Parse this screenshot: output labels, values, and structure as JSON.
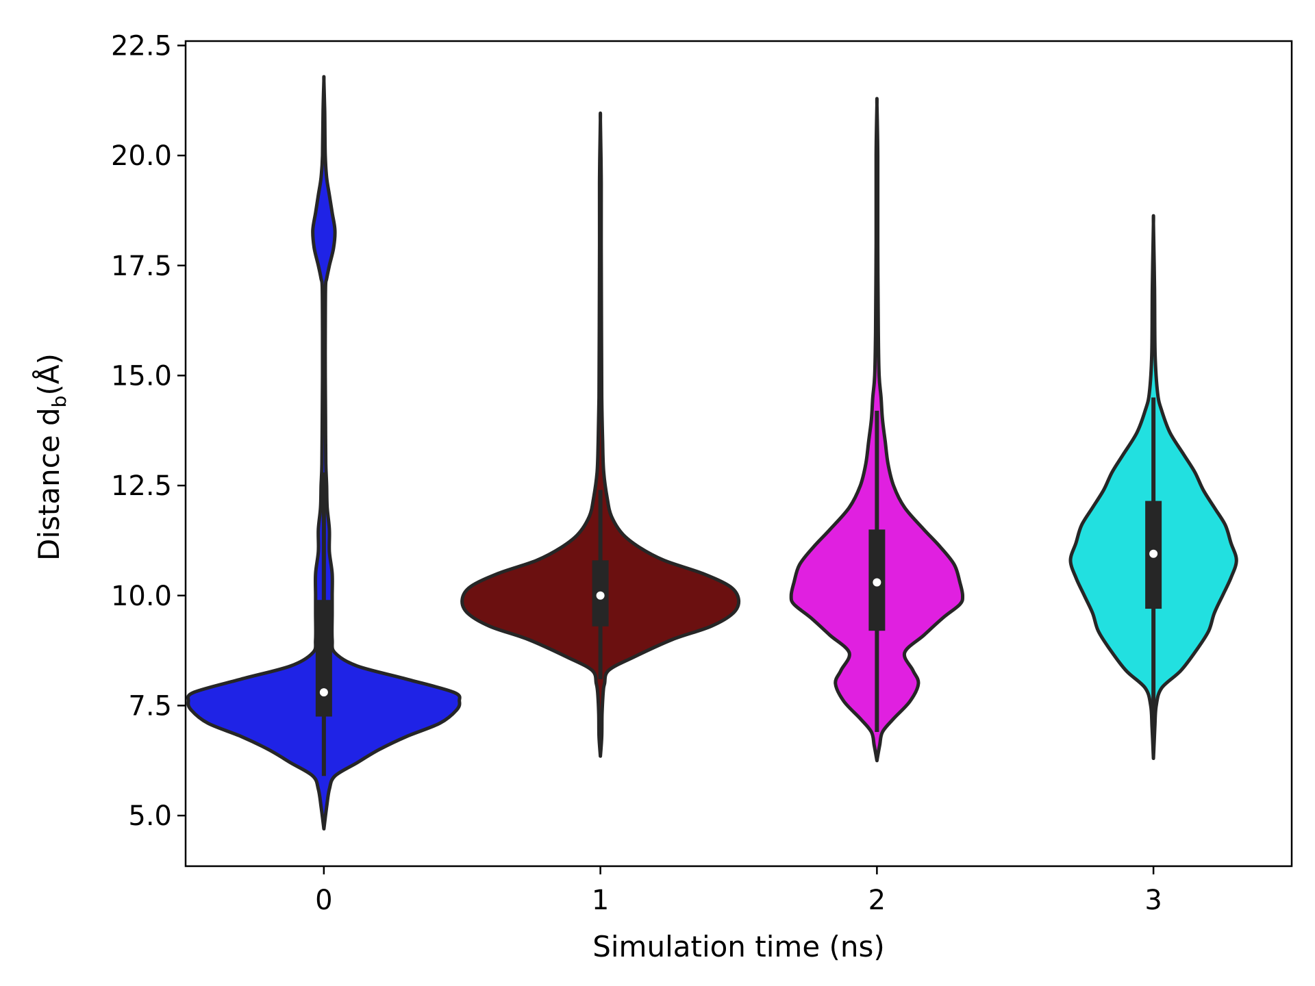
{
  "chart_data": {
    "type": "violin",
    "title": "",
    "xlabel": "Simulation time (ns)",
    "ylabel_parts": {
      "main": "Distance d",
      "subscript": "b",
      "unit": "(Å)"
    },
    "ylim": [
      3.85,
      22.6
    ],
    "xlim": [
      -0.5,
      3.5
    ],
    "y_ticks": [
      5.0,
      7.5,
      10.0,
      12.5,
      15.0,
      17.5,
      20.0,
      22.5
    ],
    "y_tick_labels": [
      "5.0",
      "7.5",
      "10.0",
      "12.5",
      "15.0",
      "17.5",
      "20.0",
      "22.5"
    ],
    "categories": [
      "0",
      "1",
      "2",
      "3"
    ],
    "violins": [
      {
        "category": "0",
        "color": "#1f23e6",
        "min": 4.7,
        "max": 21.7,
        "q1": 7.25,
        "median": 7.8,
        "q3": 9.9,
        "whisker_low": 5.9,
        "whisker_high": 12.8,
        "density": [
          [
            4.7,
            0.0
          ],
          [
            5.2,
            0.01
          ],
          [
            5.6,
            0.02
          ],
          [
            5.9,
            0.04
          ],
          [
            6.2,
            0.12
          ],
          [
            6.5,
            0.2
          ],
          [
            6.8,
            0.3
          ],
          [
            7.1,
            0.42
          ],
          [
            7.4,
            0.48
          ],
          [
            7.6,
            0.49
          ],
          [
            7.8,
            0.47
          ],
          [
            8.1,
            0.3
          ],
          [
            8.4,
            0.12
          ],
          [
            8.7,
            0.04
          ],
          [
            9.0,
            0.03
          ],
          [
            9.6,
            0.03
          ],
          [
            10.0,
            0.03
          ],
          [
            10.5,
            0.03
          ],
          [
            11.0,
            0.02
          ],
          [
            11.5,
            0.02
          ],
          [
            12.0,
            0.012
          ],
          [
            12.5,
            0.01
          ],
          [
            13.0,
            0.007
          ],
          [
            14.0,
            0.006
          ],
          [
            15.0,
            0.005
          ],
          [
            16.0,
            0.005
          ],
          [
            17.0,
            0.006
          ],
          [
            17.2,
            0.01
          ],
          [
            17.5,
            0.02
          ],
          [
            17.9,
            0.035
          ],
          [
            18.3,
            0.04
          ],
          [
            18.7,
            0.03
          ],
          [
            19.1,
            0.02
          ],
          [
            19.5,
            0.01
          ],
          [
            20.0,
            0.005
          ],
          [
            21.0,
            0.003
          ],
          [
            21.7,
            0.0
          ]
        ]
      },
      {
        "category": "1",
        "color": "#6b1010",
        "min": 6.35,
        "max": 20.8,
        "q1": 9.3,
        "median": 10.0,
        "q3": 10.8,
        "whisker_low": 8.1,
        "whisker_high": 12.4,
        "density": [
          [
            6.35,
            0.0
          ],
          [
            6.8,
            0.005
          ],
          [
            7.3,
            0.006
          ],
          [
            7.8,
            0.01
          ],
          [
            8.0,
            0.015
          ],
          [
            8.3,
            0.03
          ],
          [
            8.6,
            0.12
          ],
          [
            9.0,
            0.26
          ],
          [
            9.3,
            0.4
          ],
          [
            9.6,
            0.48
          ],
          [
            9.9,
            0.5
          ],
          [
            10.2,
            0.47
          ],
          [
            10.5,
            0.37
          ],
          [
            10.8,
            0.23
          ],
          [
            11.1,
            0.14
          ],
          [
            11.4,
            0.08
          ],
          [
            11.8,
            0.04
          ],
          [
            12.2,
            0.025
          ],
          [
            12.8,
            0.012
          ],
          [
            13.5,
            0.008
          ],
          [
            14.5,
            0.005
          ],
          [
            16.0,
            0.004
          ],
          [
            18.0,
            0.003
          ],
          [
            19.5,
            0.003
          ],
          [
            20.8,
            0.0
          ]
        ]
      },
      {
        "category": "2",
        "color": "#e020e0",
        "min": 6.25,
        "max": 21.15,
        "q1": 9.2,
        "median": 10.3,
        "q3": 11.5,
        "whisker_low": 6.9,
        "whisker_high": 14.2,
        "density": [
          [
            6.25,
            0.0
          ],
          [
            6.6,
            0.01
          ],
          [
            6.9,
            0.02
          ],
          [
            7.2,
            0.06
          ],
          [
            7.6,
            0.12
          ],
          [
            8.0,
            0.15
          ],
          [
            8.3,
            0.13
          ],
          [
            8.7,
            0.1
          ],
          [
            9.1,
            0.17
          ],
          [
            9.5,
            0.24
          ],
          [
            9.8,
            0.3
          ],
          [
            10.0,
            0.31
          ],
          [
            10.3,
            0.3
          ],
          [
            10.7,
            0.28
          ],
          [
            11.1,
            0.23
          ],
          [
            11.5,
            0.17
          ],
          [
            12.0,
            0.1
          ],
          [
            12.5,
            0.06
          ],
          [
            13.0,
            0.04
          ],
          [
            13.5,
            0.03
          ],
          [
            14.0,
            0.02
          ],
          [
            14.5,
            0.015
          ],
          [
            15.0,
            0.008
          ],
          [
            16.0,
            0.005
          ],
          [
            18.0,
            0.003
          ],
          [
            20.0,
            0.003
          ],
          [
            21.15,
            0.0
          ]
        ]
      },
      {
        "category": "3",
        "color": "#22e0e0",
        "min": 6.3,
        "max": 18.45,
        "q1": 9.7,
        "median": 10.95,
        "q3": 12.15,
        "whisker_low": 7.0,
        "whisker_high": 14.5,
        "density": [
          [
            6.3,
            0.0
          ],
          [
            7.0,
            0.005
          ],
          [
            7.5,
            0.01
          ],
          [
            7.9,
            0.03
          ],
          [
            8.3,
            0.1
          ],
          [
            8.8,
            0.16
          ],
          [
            9.2,
            0.2
          ],
          [
            9.6,
            0.22
          ],
          [
            10.0,
            0.25
          ],
          [
            10.4,
            0.28
          ],
          [
            10.8,
            0.3
          ],
          [
            11.2,
            0.28
          ],
          [
            11.6,
            0.26
          ],
          [
            12.0,
            0.22
          ],
          [
            12.4,
            0.18
          ],
          [
            12.8,
            0.15
          ],
          [
            13.2,
            0.11
          ],
          [
            13.7,
            0.06
          ],
          [
            14.2,
            0.03
          ],
          [
            14.6,
            0.015
          ],
          [
            15.5,
            0.006
          ],
          [
            17.0,
            0.004
          ],
          [
            18.45,
            0.0
          ]
        ]
      }
    ]
  }
}
